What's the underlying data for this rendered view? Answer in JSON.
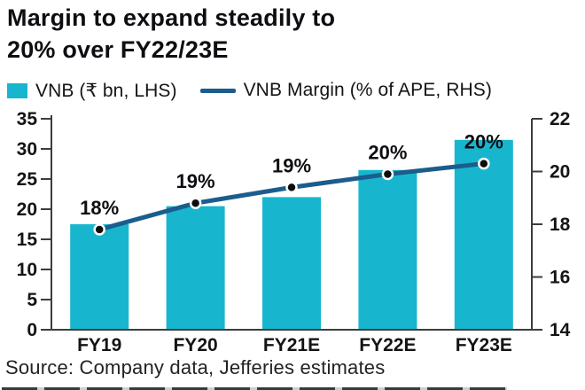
{
  "title": {
    "text": "Margin to expand steadily to 20% over FY22/23E",
    "lines": [
      "Margin to expand steadily to",
      "20% over FY22/23E"
    ]
  },
  "source": "Source: Company data, Jefferies estimates",
  "colors": {
    "bar": "#17b6ce",
    "line": "#1b5d8d",
    "marker": "#0d0d0d",
    "marker_ring": "#ffffff",
    "axis": "#3d3d3d",
    "text": "#141414"
  },
  "chart_data": {
    "type": "bar",
    "subtype": "combo-bar-line",
    "title": "Margin to expand steadily to 20% over FY22/23E",
    "categories": [
      "FY19",
      "FY20",
      "FY21E",
      "FY22E",
      "FY23E"
    ],
    "series": [
      {
        "name": "VNB (₹ bn, LHS)",
        "type": "bar",
        "axis": "left",
        "values": [
          17.5,
          20.5,
          22,
          26.5,
          31.5
        ]
      },
      {
        "name": "VNB Margin (% of APE, RHS)",
        "type": "line",
        "axis": "right",
        "values": [
          17.8,
          18.8,
          19.4,
          19.9,
          20.3
        ],
        "point_labels": [
          "18%",
          "19%",
          "19%",
          "20%",
          "20%"
        ]
      }
    ],
    "left_axis": {
      "min": 0,
      "max": 35,
      "step": 5,
      "ticks": [
        0,
        5,
        10,
        15,
        20,
        25,
        30,
        35
      ]
    },
    "right_axis": {
      "min": 14,
      "max": 22,
      "step": 2,
      "ticks": [
        14,
        16,
        18,
        20,
        22
      ]
    },
    "grid": false,
    "legend_position": "top"
  }
}
